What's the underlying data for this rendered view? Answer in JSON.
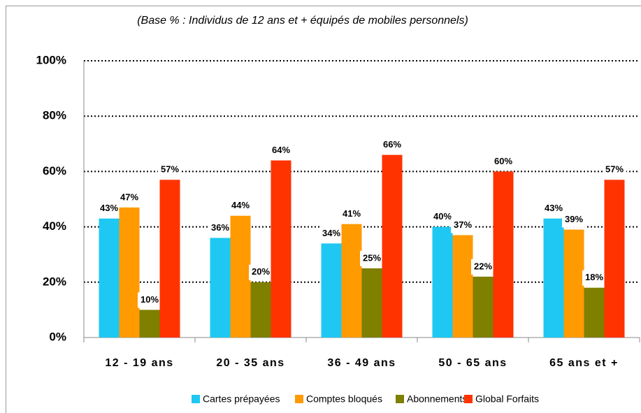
{
  "chart_data": {
    "type": "bar",
    "subtitle": "(Base % :  Individus de 12 ans et + équipés de mobiles personnels)",
    "categories": [
      "12 - 19 ans",
      "20 - 35 ans",
      "36 - 49 ans",
      "50 - 65 ans",
      "65 ans et +"
    ],
    "series": [
      {
        "name": "Cartes prépayées",
        "color": "#1ec8f2",
        "values": [
          43,
          36,
          34,
          40,
          43
        ],
        "value_labels": [
          "43%",
          "36%",
          "34%",
          "40%",
          "43%"
        ]
      },
      {
        "name": "Comptes bloqués",
        "color": "#ff9a00",
        "values": [
          47,
          44,
          41,
          37,
          39
        ],
        "value_labels": [
          "47%",
          "44%",
          "41%",
          "37%",
          "39%"
        ]
      },
      {
        "name": "Abonnements",
        "color": "#7f7f00",
        "values": [
          10,
          20,
          25,
          22,
          18
        ],
        "value_labels": [
          "10%",
          "20%",
          "25%",
          "22%",
          "18%"
        ]
      },
      {
        "name": "Global Forfaits",
        "color": "#ff3300",
        "values": [
          57,
          64,
          66,
          60,
          57
        ],
        "value_labels": [
          "57%",
          "64%",
          "66%",
          "60%",
          "57%"
        ]
      }
    ],
    "ylim": [
      0,
      100
    ],
    "yticks": [
      {
        "value": 0,
        "label": "0%"
      },
      {
        "value": 20,
        "label": "20%"
      },
      {
        "value": 40,
        "label": "40%"
      },
      {
        "value": 60,
        "label": "60%"
      },
      {
        "value": 80,
        "label": "80%"
      },
      {
        "value": 100,
        "label": "100%"
      }
    ],
    "grid": true,
    "legend": "bottom"
  }
}
